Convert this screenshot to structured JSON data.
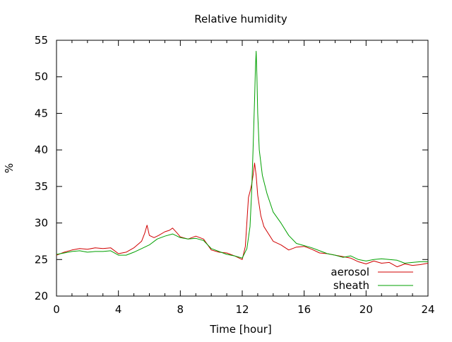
{
  "chart_data": {
    "type": "line",
    "title": "Relative humidity",
    "xlabel": "Time [hour]",
    "ylabel": "%",
    "xlim": [
      0,
      24
    ],
    "ylim": [
      20,
      55
    ],
    "x_ticks": [
      0,
      4,
      8,
      12,
      16,
      20,
      24
    ],
    "y_ticks": [
      20,
      25,
      30,
      35,
      40,
      45,
      50,
      55
    ],
    "grid": false,
    "legend_position": "bottom-right",
    "series": [
      {
        "name": "aerosol",
        "color": "#d00000",
        "x": [
          0,
          0.5,
          1,
          1.5,
          2,
          2.5,
          3,
          3.5,
          4,
          4.5,
          5,
          5.5,
          5.7,
          5.85,
          6,
          6.3,
          6.6,
          7,
          7.3,
          7.5,
          7.8,
          8,
          8.5,
          9,
          9.5,
          10,
          10.5,
          11,
          11.5,
          12,
          12.2,
          12.4,
          12.5,
          12.6,
          12.7,
          12.8,
          12.9,
          13.0,
          13.2,
          13.4,
          13.7,
          14,
          14.5,
          15,
          15.5,
          16,
          16.5,
          17,
          17.5,
          18,
          18.5,
          19,
          19.5,
          20,
          20.5,
          21,
          21.5,
          22,
          22.5,
          23,
          23.5,
          24
        ],
        "y": [
          25.6,
          26.0,
          26.3,
          26.5,
          26.4,
          26.6,
          26.5,
          26.6,
          25.8,
          26.0,
          26.6,
          27.5,
          28.6,
          29.7,
          28.3,
          28.0,
          28.3,
          28.8,
          29.0,
          29.3,
          28.6,
          28.1,
          27.8,
          28.2,
          27.8,
          26.3,
          26.0,
          25.9,
          25.5,
          25.0,
          26.8,
          33.5,
          34.3,
          35.2,
          36.5,
          38.2,
          36.5,
          33.8,
          31.0,
          29.5,
          28.5,
          27.5,
          27.0,
          26.3,
          26.7,
          26.8,
          26.4,
          25.9,
          25.8,
          25.6,
          25.4,
          25.2,
          24.7,
          24.4,
          24.8,
          24.5,
          24.6,
          24.0,
          24.4,
          24.2,
          24.3,
          24.5
        ]
      },
      {
        "name": "sheath",
        "color": "#00a000",
        "x": [
          0,
          0.5,
          1,
          1.5,
          2,
          2.5,
          3,
          3.5,
          4,
          4.5,
          5,
          5.5,
          6,
          6.5,
          7,
          7.5,
          8,
          8.5,
          9,
          9.5,
          10,
          10.5,
          11,
          11.5,
          12,
          12.3,
          12.5,
          12.6,
          12.7,
          12.8,
          12.85,
          12.9,
          12.95,
          13.0,
          13.1,
          13.3,
          13.6,
          14,
          14.5,
          15,
          15.5,
          16,
          16.5,
          17,
          17.5,
          18,
          18.5,
          19,
          19.5,
          20,
          20.5,
          21,
          21.5,
          22,
          22.5,
          23,
          23.5,
          24
        ],
        "y": [
          25.7,
          25.9,
          26.1,
          26.2,
          26.0,
          26.1,
          26.1,
          26.2,
          25.6,
          25.6,
          26.0,
          26.5,
          27.0,
          27.8,
          28.2,
          28.5,
          28.0,
          27.8,
          27.9,
          27.6,
          26.5,
          26.1,
          25.7,
          25.5,
          25.2,
          26.5,
          29.5,
          34.0,
          40.0,
          47.0,
          51.0,
          53.5,
          50.0,
          45.0,
          40.0,
          36.5,
          34.0,
          31.5,
          30.0,
          28.3,
          27.2,
          26.9,
          26.6,
          26.2,
          25.8,
          25.6,
          25.3,
          25.5,
          25.0,
          24.8,
          25.0,
          25.1,
          25.0,
          24.9,
          24.5,
          24.6,
          24.7,
          24.7
        ]
      }
    ]
  }
}
